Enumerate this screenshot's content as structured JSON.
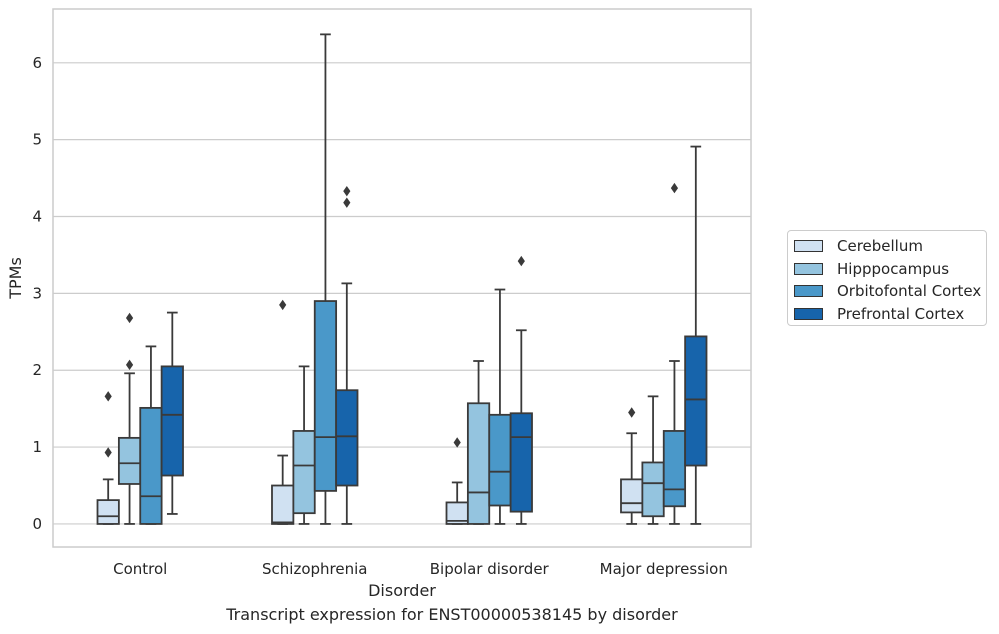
{
  "chart_data": {
    "type": "boxplot",
    "title": "",
    "caption": "Transcript expression for ENST00000538145 by disorder",
    "xlabel": "Disorder",
    "ylabel": "TPMs",
    "ylim": [
      -0.3,
      6.7
    ],
    "yticks": [
      "0",
      "1",
      "2",
      "3",
      "4",
      "5",
      "6"
    ],
    "grid": "horizontal",
    "legend_position": "right",
    "categories": [
      "Control",
      "Schizophrenia",
      "Bipolar disorder",
      "Major depression"
    ],
    "series": [
      {
        "name": "Cerebellum",
        "color": "#d0e1f2",
        "boxes": [
          {
            "min": 0,
            "q1": 0,
            "median": 0.1,
            "q3": 0.31,
            "max": 0.58,
            "outliers": [
              0.93,
              1.66
            ]
          },
          {
            "min": 0,
            "q1": 0,
            "median": 0.02,
            "q3": 0.5,
            "max": 0.89,
            "outliers": [
              2.85
            ]
          },
          {
            "min": 0,
            "q1": 0,
            "median": 0.04,
            "q3": 0.28,
            "max": 0.54,
            "outliers": [
              1.06
            ]
          },
          {
            "min": 0,
            "q1": 0.15,
            "median": 0.27,
            "q3": 0.58,
            "max": 1.18,
            "outliers": [
              1.45
            ]
          }
        ]
      },
      {
        "name": "Hipppocampus",
        "color": "#94c4df",
        "boxes": [
          {
            "min": 0,
            "q1": 0.52,
            "median": 0.79,
            "q3": 1.12,
            "max": 1.96,
            "outliers": [
              2.07,
              2.68
            ]
          },
          {
            "min": 0,
            "q1": 0.14,
            "median": 0.76,
            "q3": 1.21,
            "max": 2.05,
            "outliers": []
          },
          {
            "min": 0,
            "q1": 0,
            "median": 0.41,
            "q3": 1.57,
            "max": 2.12,
            "outliers": []
          },
          {
            "min": 0,
            "q1": 0.1,
            "median": 0.53,
            "q3": 0.8,
            "max": 1.66,
            "outliers": []
          }
        ]
      },
      {
        "name": "Orbitofontal Cortex",
        "color": "#4a98c9",
        "boxes": [
          {
            "min": 0,
            "q1": 0,
            "median": 0.36,
            "q3": 1.51,
            "max": 2.31,
            "outliers": []
          },
          {
            "min": 0,
            "q1": 0.43,
            "median": 1.13,
            "q3": 2.9,
            "max": 6.37,
            "outliers": []
          },
          {
            "min": 0,
            "q1": 0.24,
            "median": 0.68,
            "q3": 1.42,
            "max": 3.05,
            "outliers": []
          },
          {
            "min": 0,
            "q1": 0.23,
            "median": 0.45,
            "q3": 1.21,
            "max": 2.12,
            "outliers": [
              4.37
            ]
          }
        ]
      },
      {
        "name": "Prefrontal Cortex",
        "color": "#1764ab",
        "boxes": [
          {
            "min": 0.13,
            "q1": 0.63,
            "median": 1.42,
            "q3": 2.05,
            "max": 2.75,
            "outliers": []
          },
          {
            "min": 0,
            "q1": 0.5,
            "median": 1.14,
            "q3": 1.74,
            "max": 3.13,
            "outliers": [
              4.18,
              4.33
            ]
          },
          {
            "min": 0,
            "q1": 0.16,
            "median": 1.13,
            "q3": 1.44,
            "max": 2.52,
            "outliers": [
              3.42
            ]
          },
          {
            "min": 0,
            "q1": 0.76,
            "median": 1.62,
            "q3": 2.44,
            "max": 4.91,
            "outliers": []
          }
        ]
      }
    ]
  }
}
